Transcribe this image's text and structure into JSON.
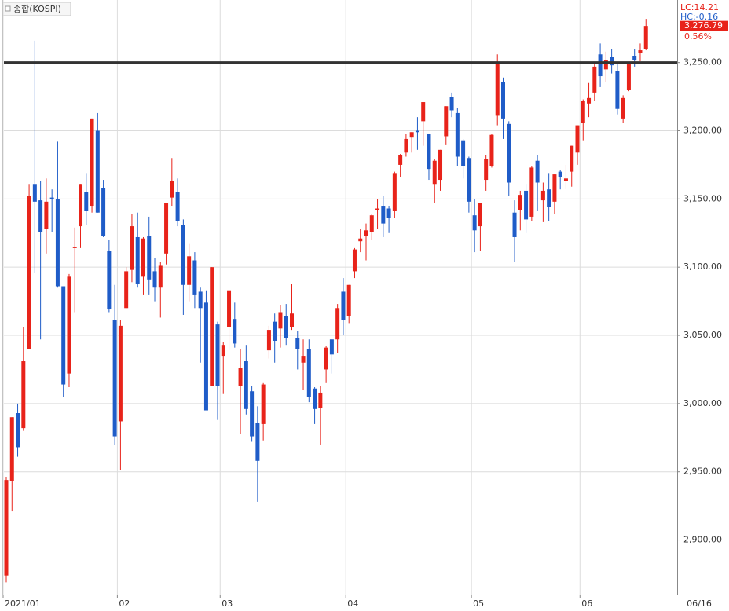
{
  "chart_data": {
    "type": "candlestick",
    "title": "종합(KOSPI)",
    "lc_label": "LC:14.21",
    "hc_label": "HC:-0.16",
    "change_label": "0.56%",
    "last_price": {
      "value": 3276.79,
      "label": "3,276.79"
    },
    "up_color": "#e8231a",
    "down_color": "#1f5cc8",
    "grid": true,
    "hline": {
      "value": 3250,
      "color": "#333333"
    },
    "ylim": [
      2860,
      3293
    ],
    "yticks": [
      {
        "value": 2900,
        "label": "2,900.00"
      },
      {
        "value": 2950,
        "label": "2,950.00"
      },
      {
        "value": 3000,
        "label": "3,000.00"
      },
      {
        "value": 3050,
        "label": "3,050.00"
      },
      {
        "value": 3100,
        "label": "3,100.00"
      },
      {
        "value": 3150,
        "label": "3,150.00"
      },
      {
        "value": 3200,
        "label": "3,200.00"
      },
      {
        "value": 3250,
        "label": "3,250.00"
      }
    ],
    "xticks": [
      {
        "value": 0,
        "label": "2021/01"
      },
      {
        "value": 20,
        "label": "02"
      },
      {
        "value": 38,
        "label": "03"
      },
      {
        "value": 60,
        "label": "04"
      },
      {
        "value": 82,
        "label": "05"
      },
      {
        "value": 101,
        "label": "06"
      }
    ],
    "last_date_label": "06/16",
    "open": [
      2874,
      2943,
      2993,
      2982,
      3040,
      3161,
      3149,
      3128,
      3151,
      3150,
      3086,
      3022,
      3114,
      3130,
      3155,
      3145,
      3200,
      3158,
      3112,
      3061,
      2987,
      3070,
      3098,
      3122,
      3093,
      3123,
      3097,
      3085,
      3110,
      3151,
      3155,
      3131,
      3087,
      3105,
      3082,
      3074,
      3013,
      3058,
      3035,
      3056,
      3062,
      3013,
      3031,
      3009,
      2986,
      2985,
      3039,
      3060,
      3055,
      3064,
      3056,
      3048,
      3030,
      3040,
      3011,
      2997,
      3025,
      3047,
      3047,
      3082,
      3064,
      3097,
      3119,
      3123,
      3126,
      3142,
      3145,
      3143,
      3141,
      3175,
      3184,
      3195,
      3200,
      3207,
      3198,
      3161,
      3164,
      3196,
      3225,
      3213,
      3193,
      3180,
      3138,
      3130,
      3164,
      3174,
      3211,
      3236,
      3205,
      3140,
      3142,
      3156,
      3137,
      3178,
      3149,
      3157,
      3148,
      3170,
      3163,
      3170,
      3184,
      3206,
      3220,
      3228,
      3256,
      3245,
      3254,
      3244,
      3209,
      3230,
      3255,
      3257,
      3260
    ],
    "high": [
      2946,
      2990,
      3000,
      3056,
      3161,
      3266,
      3163,
      3165,
      3157,
      3192,
      3086,
      3095,
      3129,
      3161,
      3169,
      3209,
      3213,
      3164,
      3120,
      3087,
      3061,
      3100,
      3139,
      3140,
      3122,
      3137,
      3107,
      3104,
      3147,
      3180,
      3165,
      3135,
      3117,
      3111,
      3085,
      3083,
      3100,
      3060,
      3045,
      3083,
      3074,
      3040,
      3043,
      3013,
      2998,
      3015,
      3057,
      3066,
      3072,
      3073,
      3088,
      3053,
      3047,
      3047,
      3012,
      3013,
      3042,
      3047,
      3073,
      3092,
      3087,
      3114,
      3128,
      3132,
      3139,
      3150,
      3152,
      3145,
      3170,
      3183,
      3198,
      3199,
      3210,
      3221,
      3198,
      3179,
      3186,
      3218,
      3228,
      3217,
      3194,
      3181,
      3150,
      3147,
      3182,
      3198,
      3256,
      3239,
      3207,
      3149,
      3156,
      3161,
      3174,
      3182,
      3162,
      3169,
      3168,
      3171,
      3175,
      3189,
      3204,
      3223,
      3235,
      3249,
      3264,
      3258,
      3260,
      3249,
      3226,
      3250,
      3260,
      3264,
      3282
    ],
    "low": [
      2869,
      2921,
      2961,
      2980,
      3040,
      3096,
      3047,
      3110,
      3126,
      3085,
      3005,
      3012,
      3067,
      3114,
      3131,
      3140,
      3140,
      3122,
      3067,
      2970,
      2951,
      3070,
      3089,
      3085,
      3080,
      3080,
      3075,
      3063,
      3102,
      3145,
      3130,
      3065,
      3075,
      3070,
      3030,
      2995,
      3013,
      2988,
      3007,
      3039,
      3041,
      2978,
      2992,
      2972,
      2928,
      2973,
      3033,
      3030,
      3041,
      3043,
      3054,
      3025,
      3010,
      3001,
      2985,
      2970,
      3015,
      3022,
      3037,
      3050,
      3059,
      3092,
      3111,
      3105,
      3120,
      3128,
      3122,
      3125,
      3136,
      3166,
      3181,
      3184,
      3186,
      3189,
      3164,
      3147,
      3156,
      3190,
      3210,
      3174,
      3165,
      3140,
      3111,
      3112,
      3156,
      3173,
      3204,
      3194,
      3152,
      3104,
      3127,
      3125,
      3134,
      3141,
      3133,
      3134,
      3139,
      3157,
      3157,
      3159,
      3175,
      3193,
      3210,
      3222,
      3232,
      3236,
      3242,
      3212,
      3206,
      3229,
      3247,
      3251,
      3259
    ],
    "close": [
      2944,
      2990,
      2968,
      3031,
      3152,
      3148,
      3126,
      3148,
      3150,
      3086,
      3014,
      3093,
      3115,
      3161,
      3141,
      3209,
      3140,
      3123,
      3069,
      2976,
      3057,
      3097,
      3130,
      3088,
      3121,
      3091,
      3085,
      3101,
      3147,
      3163,
      3134,
      3087,
      3108,
      3080,
      3070,
      2995,
      3100,
      3013,
      3043,
      3083,
      3044,
      3026,
      2996,
      2976,
      2958,
      3014,
      3054,
      3046,
      3067,
      3048,
      3066,
      3040,
      3035,
      3005,
      2996,
      3008,
      3041,
      3036,
      3070,
      3061,
      3087,
      3113,
      3121,
      3127,
      3138,
      3143,
      3132,
      3136,
      3169,
      3182,
      3194,
      3199,
      3199,
      3221,
      3172,
      3178,
      3186,
      3218,
      3215,
      3181,
      3174,
      3148,
      3127,
      3147,
      3179,
      3197,
      3249,
      3209,
      3162,
      3122,
      3153,
      3135,
      3173,
      3162,
      3156,
      3144,
      3168,
      3166,
      3165,
      3189,
      3204,
      3222,
      3224,
      3247,
      3240,
      3252,
      3248,
      3216,
      3224,
      3249,
      3252,
      3259,
      3276.79
    ]
  }
}
